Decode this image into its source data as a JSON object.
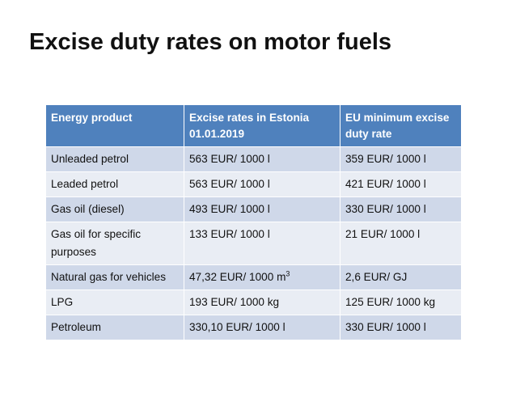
{
  "slide": {
    "title": "Excise duty rates on motor fuels"
  },
  "table": {
    "headers": [
      "Energy product",
      "Excise rates in Estonia 01.01.2019",
      "EU minimum excise duty rate"
    ],
    "rows": [
      {
        "product": "Unleaded petrol",
        "estonia_rate": "563 EUR/ 1000 l",
        "eu_min_rate": "359 EUR/ 1000 l"
      },
      {
        "product": "Leaded petrol",
        "estonia_rate": "563 EUR/ 1000 l",
        "eu_min_rate": "421 EUR/ 1000 l"
      },
      {
        "product": "Gas oil (diesel)",
        "estonia_rate": "493 EUR/ 1000 l",
        "eu_min_rate": "330 EUR/ 1000 l"
      },
      {
        "product": "Gas oil for specific purposes",
        "estonia_rate": "133 EUR/ 1000 l",
        "eu_min_rate": "21 EUR/ 1000 l"
      },
      {
        "product": "Natural gas for vehicles",
        "estonia_rate": "47,32 EUR/ 1000 m",
        "estonia_rate_sup": "3",
        "eu_min_rate": "2,6 EUR/ GJ"
      },
      {
        "product": "LPG",
        "estonia_rate": "193 EUR/ 1000 kg",
        "eu_min_rate": "125 EUR/ 1000 kg"
      },
      {
        "product": "Petroleum",
        "estonia_rate": "330,10 EUR/ 1000 l",
        "eu_min_rate": "330 EUR/ 1000 l"
      }
    ]
  },
  "colors": {
    "header_bg": "#4f81bd",
    "row_odd_bg": "#cfd8e9",
    "row_even_bg": "#e9edf4"
  }
}
